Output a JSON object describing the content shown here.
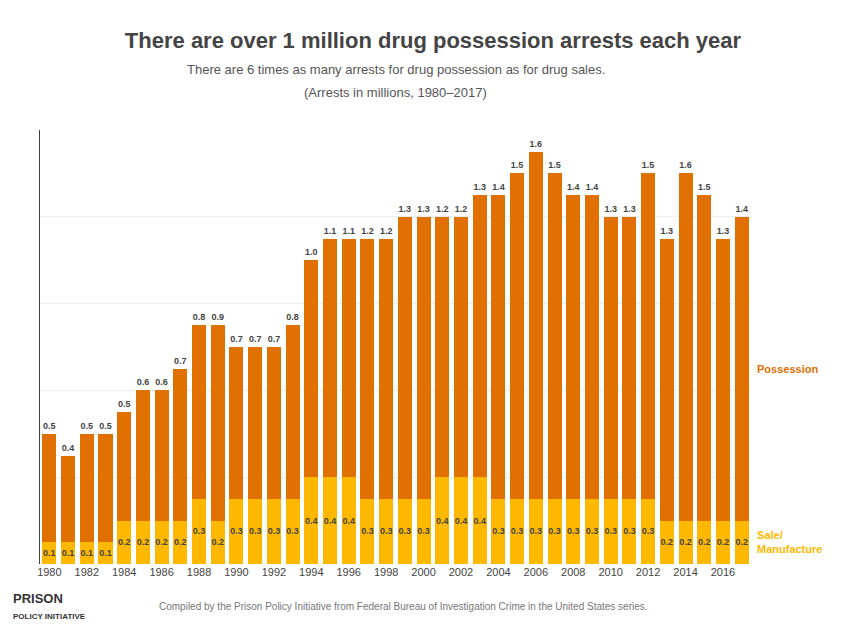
{
  "chart_data": {
    "type": "bar",
    "stacked": true,
    "title": "There are over 1 million drug possession arrests each year",
    "subtitle": [
      "There are 6 times as many arrests for drug possession as for drug sales.",
      "(Arrests in millions, 1980–2017)"
    ],
    "annotations": [
      "PRISON",
      "POLICY INITIATIVE",
      "Compiled by the Prison Policy Initiative from Federal Bureau of Investigation Crime in the United States series."
    ],
    "categories": [
      "1980",
      null,
      "1982",
      null,
      "1984",
      null,
      "1986",
      null,
      "1988",
      null,
      "1990",
      null,
      "1992",
      null,
      "1994",
      null,
      "1996",
      null,
      "1998",
      null,
      "2000",
      null,
      "2002",
      null,
      "2004",
      null,
      "2006",
      null,
      "2008",
      null,
      "2010",
      null,
      "2012",
      null,
      "2014",
      null,
      "2016",
      null
    ],
    "series": [
      {
        "name": "Sale/\nManufacture",
        "color": "#FFB800",
        "values": [
          0.1,
          0.1,
          0.1,
          0.1,
          0.2,
          0.2,
          0.2,
          0.2,
          0.3,
          0.2,
          0.3,
          0.3,
          0.3,
          0.3,
          0.4,
          0.4,
          0.4,
          0.3,
          0.3,
          0.3,
          0.3,
          0.4,
          0.4,
          0.4,
          0.3,
          0.3,
          0.3,
          0.3,
          0.3,
          0.3,
          0.3,
          0.3,
          0.3,
          0.2,
          0.2,
          0.2,
          0.2,
          0.2
        ]
      },
      {
        "name": "Possession",
        "color": "#E07000",
        "values": [
          0.5,
          0.4,
          0.5,
          0.5,
          0.5,
          0.6,
          0.6,
          0.7,
          0.8,
          0.9,
          0.7,
          0.7,
          0.7,
          0.8,
          1.0,
          1.1,
          1.1,
          1.2,
          1.2,
          1.3,
          1.3,
          1.2,
          1.2,
          1.3,
          1.4,
          1.5,
          1.6,
          1.5,
          1.4,
          1.4,
          1.3,
          1.3,
          1.5,
          1.3,
          1.6,
          1.5,
          1.3,
          1.4
        ],
        "value_labels": [
          "0.5",
          "0.4",
          "0.5",
          "0.5",
          "0.5",
          "0.6",
          "0.6",
          "0.7",
          "0.8",
          "0.9",
          "0.7",
          "0.7",
          "0.7",
          "0.8",
          "1.0",
          "1.1",
          "1.1",
          "1.2",
          "1.2",
          "1.3",
          "1.3",
          "1.2",
          "1.2",
          "1.3",
          "1.4",
          "1.5",
          "1.6",
          "1.5",
          "1.4",
          "1.4",
          "1.3",
          "1.3",
          "1.5",
          "1.3",
          "1.6",
          "1.5",
          "1.3",
          "1.4"
        ]
      }
    ],
    "ylim": [
      0,
      2.0
    ],
    "yticks": [
      0.4,
      0.8,
      1.2,
      1.6
    ],
    "grid": true,
    "tick_labels": "x",
    "data_labels": true
  }
}
